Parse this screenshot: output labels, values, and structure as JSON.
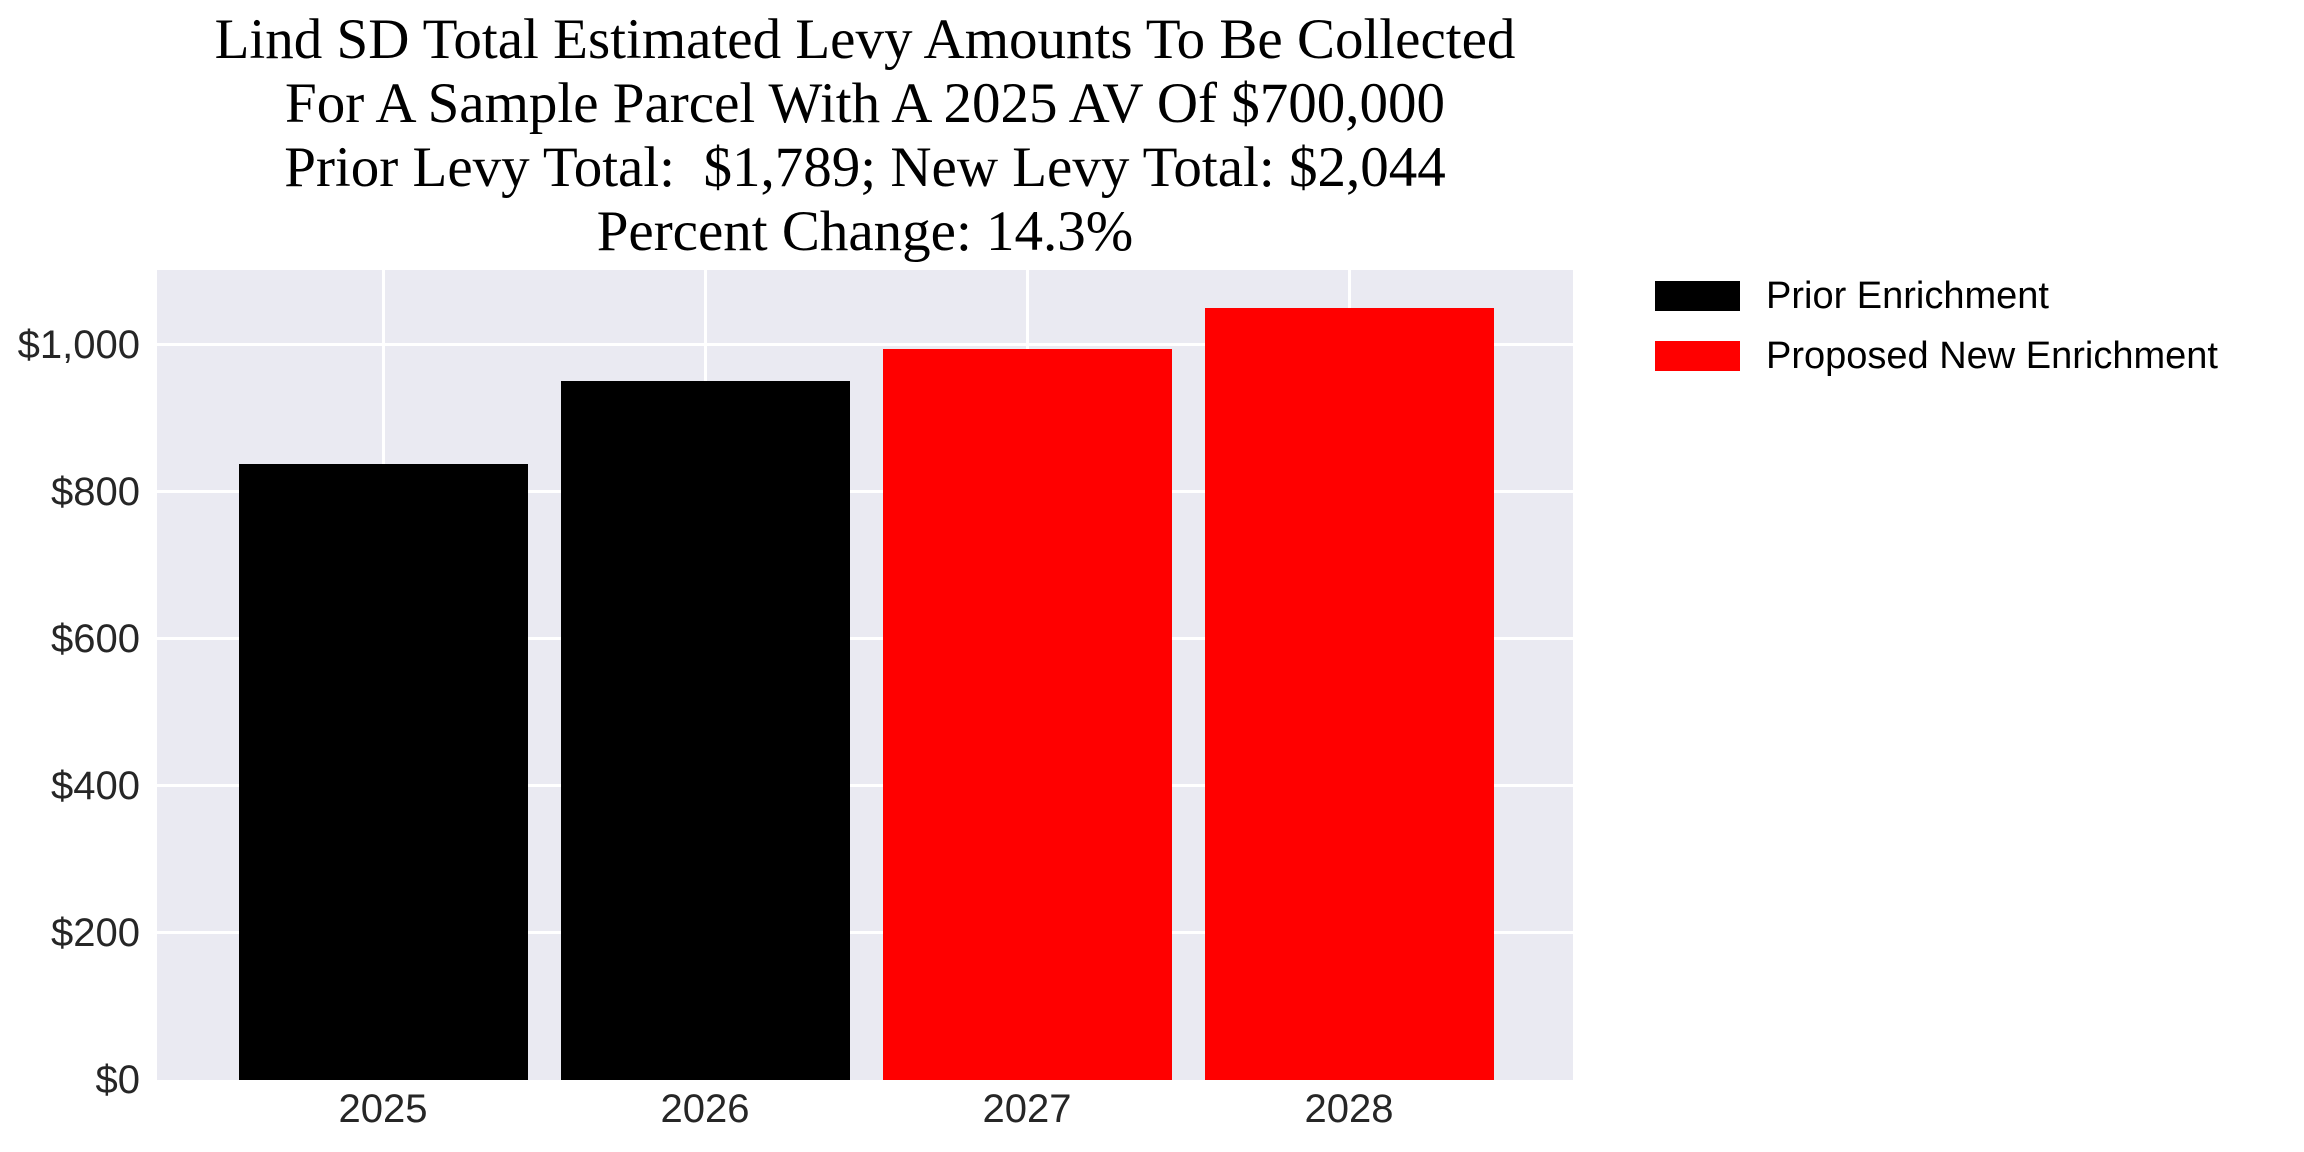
{
  "title": {
    "lines": [
      "Lind SD Total Estimated Levy Amounts To Be Collected",
      "For A Sample Parcel With A 2025 AV Of $700,000",
      "Prior Levy Total:  $1,789; New Levy Total: $2,044",
      "Percent Change: 14.3%"
    ]
  },
  "chart_data": {
    "type": "bar",
    "title": "Lind SD Total Estimated Levy Amounts To Be Collected For A Sample Parcel With A 2025 AV Of $700,000 Prior Levy Total: $1,789; New Levy Total: $2,044 Percent Change: 14.3%",
    "categories": [
      "2025",
      "2026",
      "2027",
      "2028"
    ],
    "values": [
      838,
      951,
      994,
      1050
    ],
    "bar_colors": [
      "#000000",
      "#000000",
      "#ff0000",
      "#ff0000"
    ],
    "series": [
      {
        "name": "Prior Enrichment",
        "color": "#000000",
        "categories": [
          "2025",
          "2026"
        ],
        "values": [
          838,
          951
        ],
        "total": "$1,789"
      },
      {
        "name": "Proposed New Enrichment",
        "color": "#ff0000",
        "categories": [
          "2027",
          "2028"
        ],
        "values": [
          994,
          1050
        ],
        "total": "$2,044"
      }
    ],
    "percent_change": "14.3%",
    "xlabel": "",
    "ylabel": "",
    "y_ticks": [
      {
        "value": 0,
        "label": "$0"
      },
      {
        "value": 200,
        "label": "$200"
      },
      {
        "value": 400,
        "label": "$400"
      },
      {
        "value": 600,
        "label": "$600"
      },
      {
        "value": 800,
        "label": "$800"
      },
      {
        "value": 1000,
        "label": "$1,000"
      }
    ],
    "ylim": [
      0,
      1102
    ],
    "grid": true,
    "legend": [
      {
        "label": "Prior Enrichment",
        "color": "#000000"
      },
      {
        "label": "Proposed New Enrichment",
        "color": "#ff0000"
      }
    ],
    "legend_position": "outside-upper-right",
    "colors": {
      "plot_background": "#eaeaf2",
      "gridline": "#ffffff",
      "tick_label": "#262626",
      "title_text": "#000000",
      "legend_text": "#000000"
    }
  }
}
